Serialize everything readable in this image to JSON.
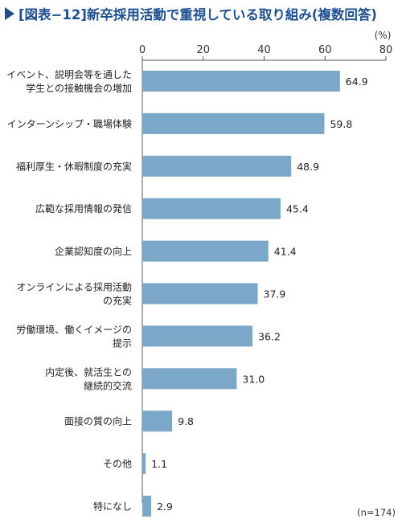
{
  "chart_data": {
    "type": "bar",
    "orientation": "horizontal",
    "title": "[図表−12]新卒採用活動で重視している取り組み(複数回答)",
    "unit": "(%)",
    "note": "(n=174)",
    "xlim": [
      0,
      80
    ],
    "x_ticks": [
      0,
      20,
      40,
      60,
      80
    ],
    "grid": false,
    "bar_color": "#7ba7c9",
    "categories": [
      [
        "イベント、説明会等を通した",
        "学生との接触機会の増加"
      ],
      [
        "インターンシップ・職場体験"
      ],
      [
        "福利厚生・休暇制度の充実"
      ],
      [
        "広範な採用情報の発信"
      ],
      [
        "企業認知度の向上"
      ],
      [
        "オンラインによる採用活動",
        "の充実"
      ],
      [
        "労働環境、働くイメージの",
        "提示"
      ],
      [
        "内定後、就活生との",
        "継続的交流"
      ],
      [
        "面接の質の向上"
      ],
      [
        "その他"
      ],
      [
        "特になし"
      ]
    ],
    "values": [
      64.9,
      59.8,
      48.9,
      45.4,
      41.4,
      37.9,
      36.2,
      31.0,
      9.8,
      1.1,
      2.9
    ],
    "value_labels": [
      "64.9",
      "59.8",
      "48.9",
      "45.4",
      "41.4",
      "37.9",
      "36.2",
      "31.0",
      "9.8",
      "1.1",
      "2.9"
    ]
  }
}
